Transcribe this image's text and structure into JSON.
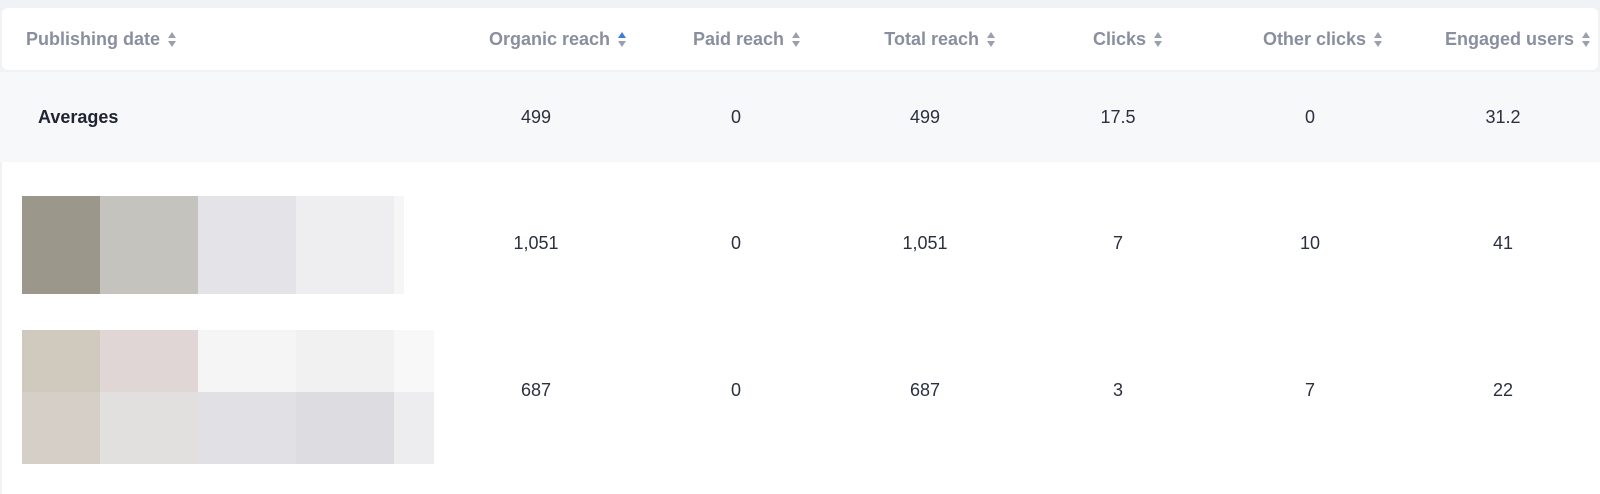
{
  "table": {
    "columns": [
      {
        "label": "Publishing date",
        "sort": "none"
      },
      {
        "label": "Organic reach",
        "sort": "active-asc"
      },
      {
        "label": "Paid reach",
        "sort": "none"
      },
      {
        "label": "Total reach",
        "sort": "none"
      },
      {
        "label": "Clicks",
        "sort": "none"
      },
      {
        "label": "Other clicks",
        "sort": "none"
      },
      {
        "label": "Engaged users",
        "sort": "none"
      }
    ],
    "averages": {
      "label": "Averages",
      "values": [
        "499",
        "0",
        "499",
        "17.5",
        "0",
        "31.2"
      ]
    },
    "rows": [
      {
        "values": [
          "1,051",
          "0",
          "1,051",
          "7",
          "10",
          "41"
        ],
        "thumbnail": "blurred-post-image"
      },
      {
        "values": [
          "687",
          "0",
          "687",
          "3",
          "7",
          "22"
        ],
        "thumbnail": "blurred-post-image"
      }
    ]
  },
  "colors": {
    "sort_active": "#3d7be0",
    "header_text": "#8a8fa0",
    "body_text": "#2b3040"
  }
}
